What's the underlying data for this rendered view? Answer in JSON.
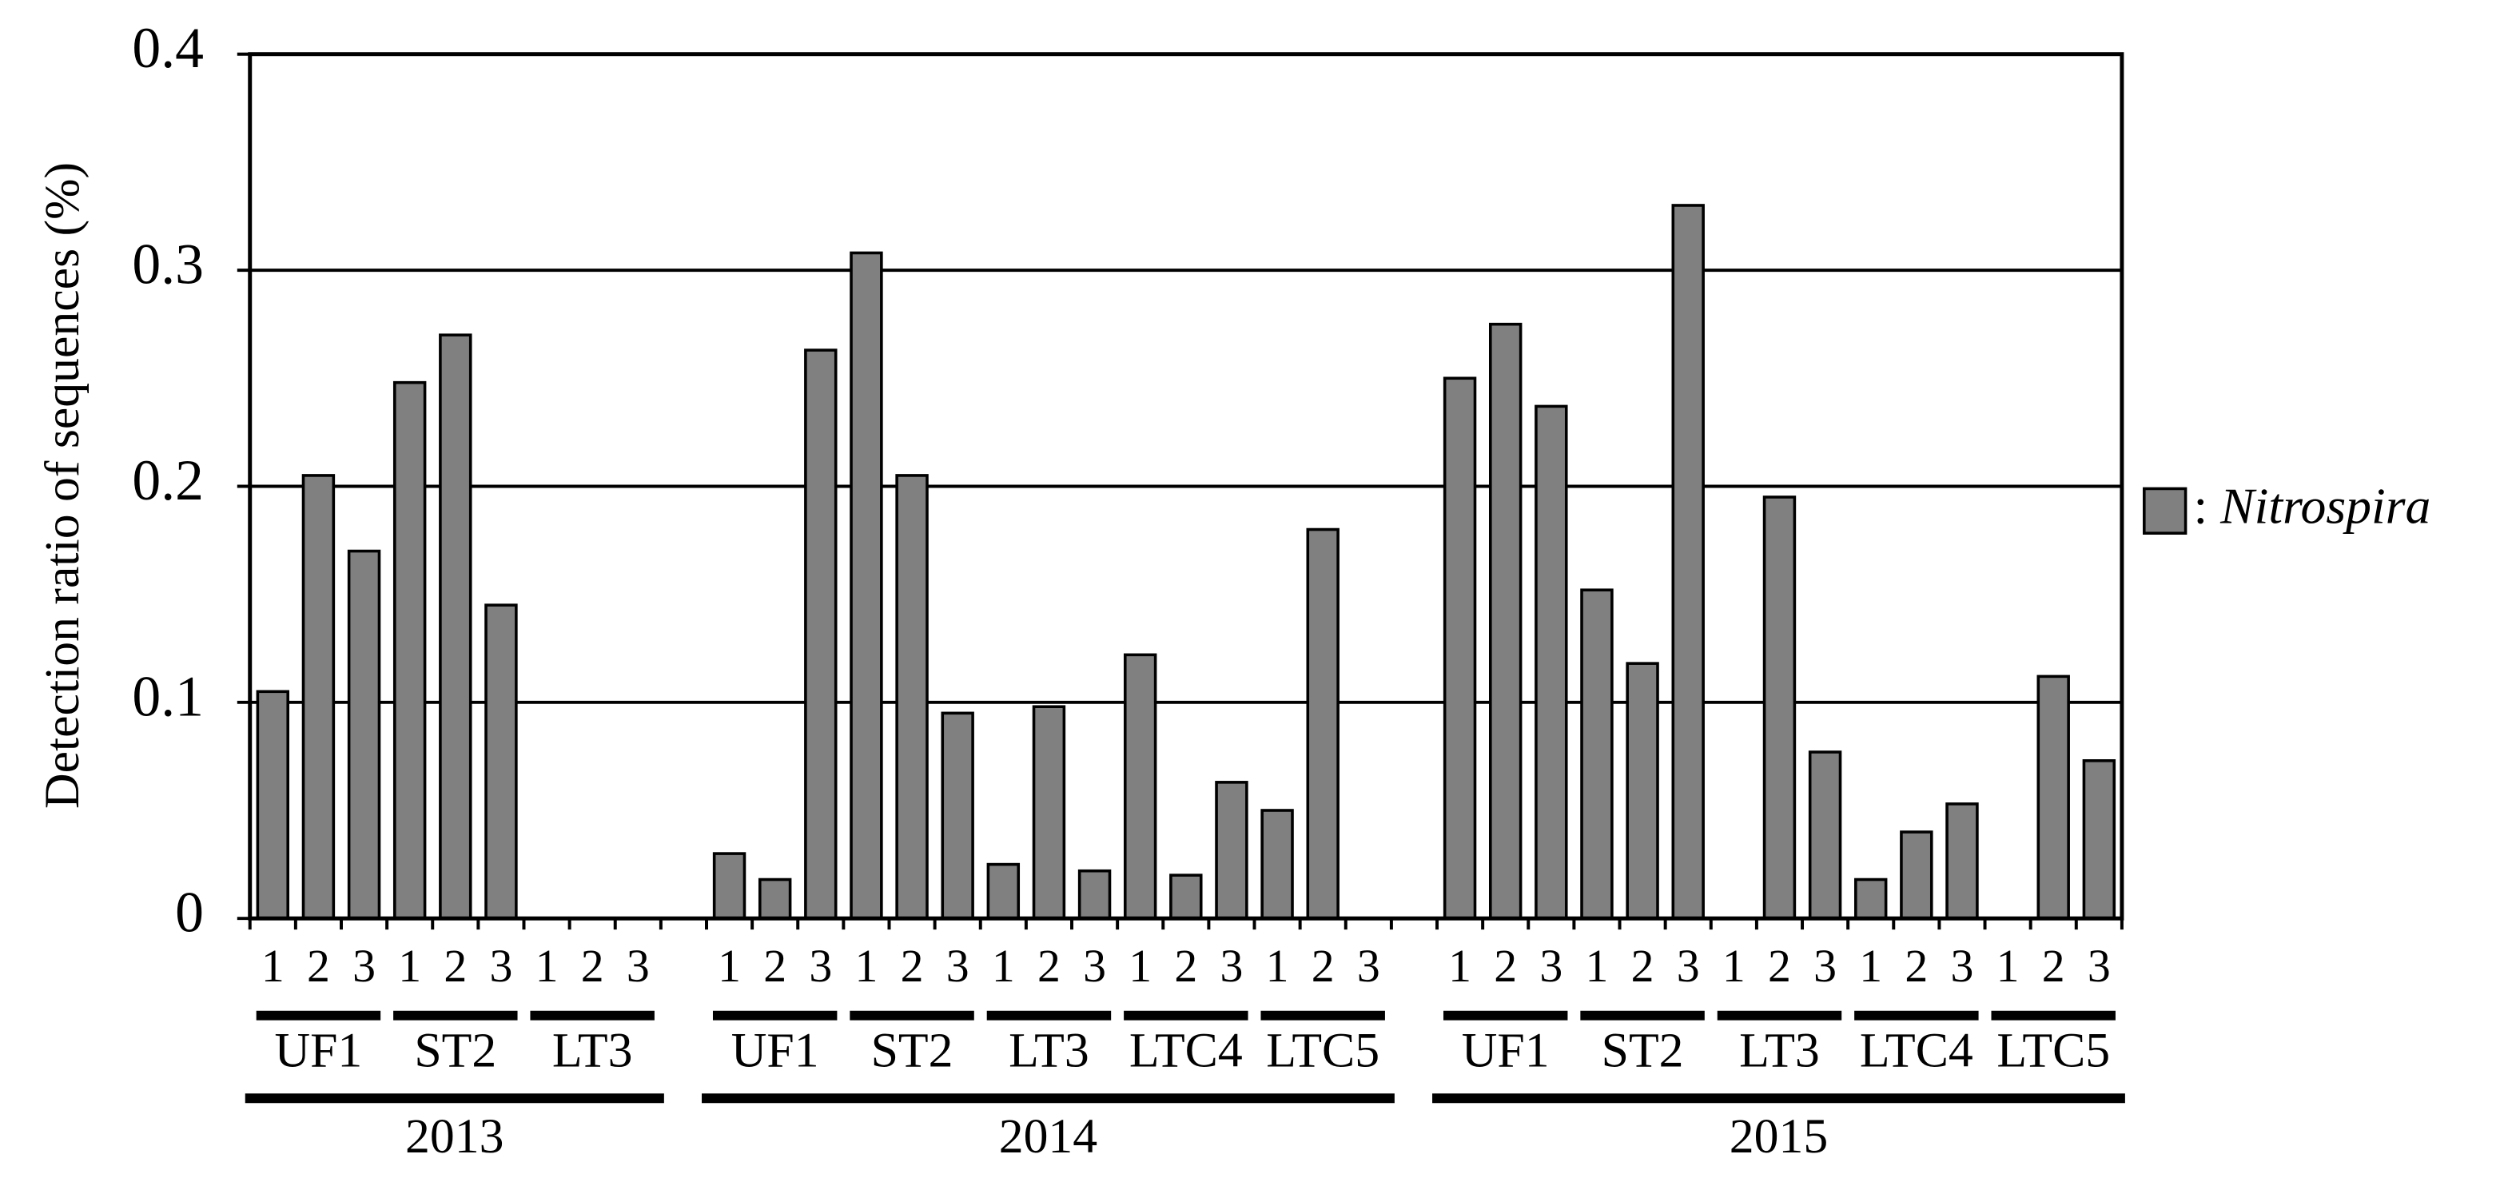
{
  "chart_data": {
    "type": "bar",
    "y_label": "Detection ratio of sequences (%)",
    "ylim": [
      0,
      0.4
    ],
    "yticks": [
      0,
      0.1,
      0.2,
      0.3,
      0.4
    ],
    "grid": true,
    "color": "#808080",
    "legend": {
      "separator": ":",
      "name": "Nitrospira",
      "position": "right"
    },
    "years": [
      {
        "name": "2013",
        "groups": [
          {
            "name": "UF1",
            "categories": [
              "1",
              "2",
              "3"
            ],
            "values": [
              0.105,
              0.205,
              0.17
            ]
          },
          {
            "name": "ST2",
            "categories": [
              "1",
              "2",
              "3"
            ],
            "values": [
              0.248,
              0.27,
              0.145
            ]
          },
          {
            "name": "LT3",
            "categories": [
              "1",
              "2",
              "3"
            ],
            "values": [
              0,
              0,
              0
            ]
          }
        ]
      },
      {
        "name": "2014",
        "groups": [
          {
            "name": "UF1",
            "categories": [
              "1",
              "2",
              "3"
            ],
            "values": [
              0.03,
              0.018,
              0.263
            ]
          },
          {
            "name": "ST2",
            "categories": [
              "1",
              "2",
              "3"
            ],
            "values": [
              0.308,
              0.205,
              0.095
            ]
          },
          {
            "name": "LT3",
            "categories": [
              "1",
              "2",
              "3"
            ],
            "values": [
              0.025,
              0.098,
              0.022
            ]
          },
          {
            "name": "LTC4",
            "categories": [
              "1",
              "2",
              "3"
            ],
            "values": [
              0.122,
              0.02,
              0.063
            ]
          },
          {
            "name": "LTC5",
            "categories": [
              "1",
              "2",
              "3"
            ],
            "values": [
              0.05,
              0.18,
              0
            ]
          }
        ]
      },
      {
        "name": "2015",
        "groups": [
          {
            "name": "UF1",
            "categories": [
              "1",
              "2",
              "3"
            ],
            "values": [
              0.25,
              0.275,
              0.237
            ]
          },
          {
            "name": "ST2",
            "categories": [
              "1",
              "2",
              "3"
            ],
            "values": [
              0.152,
              0.118,
              0.33
            ]
          },
          {
            "name": "LT3",
            "categories": [
              "1",
              "2",
              "3"
            ],
            "values": [
              0,
              0.195,
              0.077
            ]
          },
          {
            "name": "LTC4",
            "categories": [
              "1",
              "2",
              "3"
            ],
            "values": [
              0.018,
              0.04,
              0.053
            ]
          },
          {
            "name": "LTC5",
            "categories": [
              "1",
              "2",
              "3"
            ],
            "values": [
              0,
              0.112,
              0.073
            ]
          }
        ]
      }
    ]
  }
}
